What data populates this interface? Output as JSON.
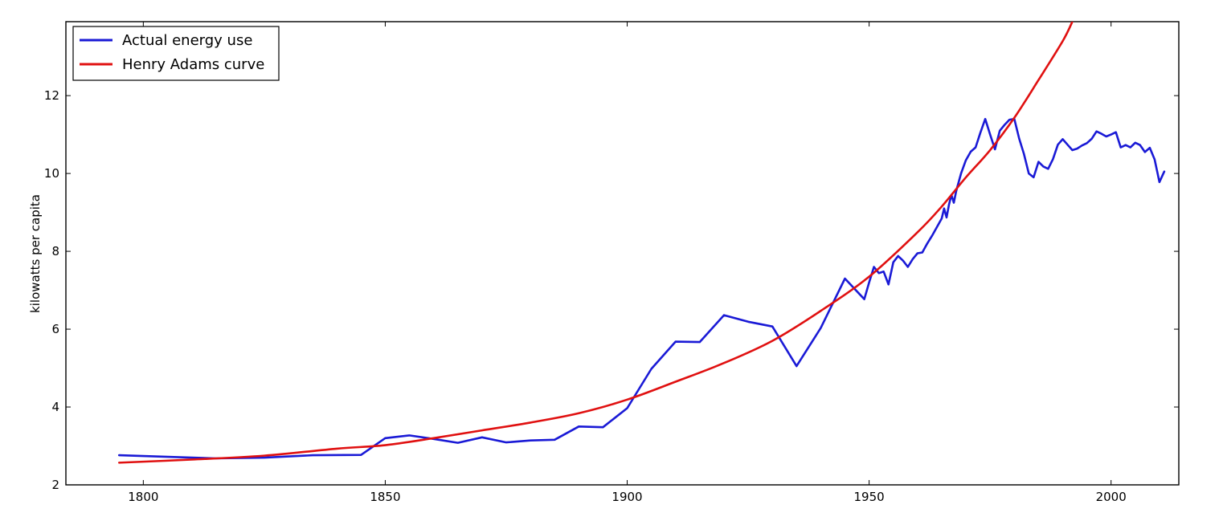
{
  "chart_data": {
    "type": "line",
    "title": "",
    "xlabel": "",
    "ylabel": "kilowatts per capita",
    "xlim": [
      1784,
      2014
    ],
    "ylim": [
      2,
      13.9
    ],
    "xticks": [
      1800,
      1850,
      1900,
      1950,
      2000
    ],
    "yticks": [
      2,
      4,
      6,
      8,
      10,
      12
    ],
    "grid": false,
    "legend_position": "top-left",
    "series": [
      {
        "name": "Actual energy use",
        "color": "#1a1ad6",
        "points": [
          [
            1795,
            2.76
          ],
          [
            1805,
            2.72
          ],
          [
            1815,
            2.68
          ],
          [
            1825,
            2.7
          ],
          [
            1835,
            2.76
          ],
          [
            1845,
            2.77
          ],
          [
            1850,
            3.2
          ],
          [
            1855,
            3.27
          ],
          [
            1860,
            3.18
          ],
          [
            1865,
            3.08
          ],
          [
            1870,
            3.22
          ],
          [
            1875,
            3.09
          ],
          [
            1880,
            3.14
          ],
          [
            1885,
            3.16
          ],
          [
            1890,
            3.5
          ],
          [
            1895,
            3.48
          ],
          [
            1900,
            3.97
          ],
          [
            1905,
            4.98
          ],
          [
            1910,
            5.68
          ],
          [
            1915,
            5.67
          ],
          [
            1920,
            6.36
          ],
          [
            1925,
            6.19
          ],
          [
            1930,
            6.07
          ],
          [
            1935,
            5.05
          ],
          [
            1940,
            6.03
          ],
          [
            1945,
            7.3
          ],
          [
            1949,
            6.77
          ],
          [
            1950,
            7.2
          ],
          [
            1951,
            7.6
          ],
          [
            1952,
            7.44
          ],
          [
            1953,
            7.48
          ],
          [
            1954,
            7.15
          ],
          [
            1955,
            7.72
          ],
          [
            1956,
            7.88
          ],
          [
            1957,
            7.76
          ],
          [
            1958,
            7.6
          ],
          [
            1959,
            7.8
          ],
          [
            1960,
            7.95
          ],
          [
            1961,
            7.97
          ],
          [
            1962,
            8.2
          ],
          [
            1963,
            8.4
          ],
          [
            1964,
            8.62
          ],
          [
            1965,
            8.84
          ],
          [
            1965.5,
            9.1
          ],
          [
            1966,
            8.87
          ],
          [
            1966.5,
            9.2
          ],
          [
            1967,
            9.45
          ],
          [
            1967.5,
            9.25
          ],
          [
            1968,
            9.55
          ],
          [
            1969,
            10.0
          ],
          [
            1970,
            10.34
          ],
          [
            1971,
            10.56
          ],
          [
            1972,
            10.67
          ],
          [
            1973,
            11.05
          ],
          [
            1974,
            11.4
          ],
          [
            1975,
            11.0
          ],
          [
            1976,
            10.62
          ],
          [
            1977,
            11.1
          ],
          [
            1978,
            11.25
          ],
          [
            1979,
            11.38
          ],
          [
            1980,
            11.4
          ],
          [
            1981,
            10.9
          ],
          [
            1982,
            10.5
          ],
          [
            1983,
            10.0
          ],
          [
            1984,
            9.9
          ],
          [
            1985,
            10.3
          ],
          [
            1986,
            10.18
          ],
          [
            1987,
            10.12
          ],
          [
            1988,
            10.37
          ],
          [
            1989,
            10.74
          ],
          [
            1990,
            10.88
          ],
          [
            1991,
            10.74
          ],
          [
            1992,
            10.6
          ],
          [
            1993,
            10.64
          ],
          [
            1994,
            10.72
          ],
          [
            1995,
            10.78
          ],
          [
            1996,
            10.89
          ],
          [
            1997,
            11.08
          ],
          [
            1998,
            11.02
          ],
          [
            1999,
            10.95
          ],
          [
            2000,
            11.0
          ],
          [
            2001,
            11.06
          ],
          [
            2002,
            10.67
          ],
          [
            2003,
            10.73
          ],
          [
            2004,
            10.67
          ],
          [
            2005,
            10.79
          ],
          [
            2006,
            10.73
          ],
          [
            2007,
            10.55
          ],
          [
            2008,
            10.66
          ],
          [
            2009,
            10.36
          ],
          [
            2010,
            9.78
          ],
          [
            2011,
            10.05
          ]
        ]
      },
      {
        "name": "Henry Adams curve",
        "color": "#e01010",
        "function": "exponential",
        "x_range": [
          1795,
          1992
        ],
        "points": [
          [
            1795,
            2.57
          ],
          [
            1810,
            2.65
          ],
          [
            1825,
            2.75
          ],
          [
            1840,
            2.93
          ],
          [
            1850,
            3.02
          ],
          [
            1860,
            3.2
          ],
          [
            1870,
            3.4
          ],
          [
            1880,
            3.6
          ],
          [
            1890,
            3.84
          ],
          [
            1900,
            4.19
          ],
          [
            1910,
            4.65
          ],
          [
            1920,
            5.13
          ],
          [
            1930,
            5.7
          ],
          [
            1940,
            6.47
          ],
          [
            1950,
            7.35
          ],
          [
            1960,
            8.49
          ],
          [
            1965,
            9.15
          ],
          [
            1970,
            9.9
          ],
          [
            1975,
            10.6
          ],
          [
            1980,
            11.43
          ],
          [
            1985,
            12.4
          ],
          [
            1990,
            13.4
          ],
          [
            1992,
            13.9
          ]
        ]
      }
    ]
  }
}
